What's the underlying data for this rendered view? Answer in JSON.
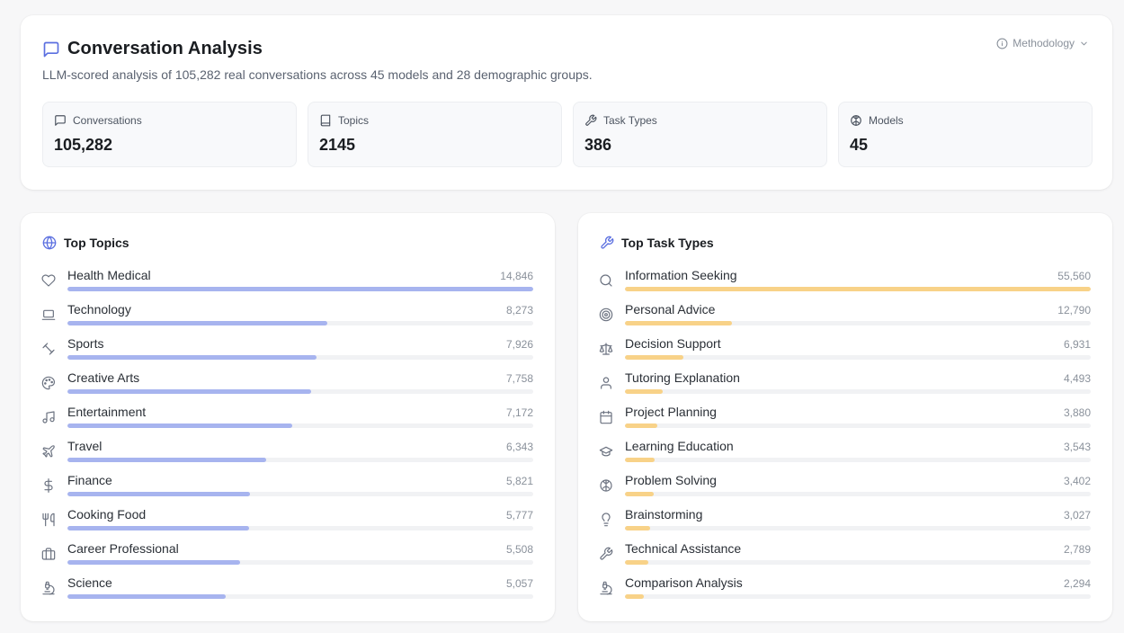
{
  "header": {
    "title": "Conversation Analysis",
    "subtitle": "LLM-scored analysis of 105,282 real conversations across 45 models and 28 demographic groups.",
    "methodology_label": "Methodology"
  },
  "stats": [
    {
      "label": "Conversations",
      "value": "105,282",
      "icon": "message-icon"
    },
    {
      "label": "Topics",
      "value": "2145",
      "icon": "book-icon"
    },
    {
      "label": "Task Types",
      "value": "386",
      "icon": "wrench-icon"
    },
    {
      "label": "Models",
      "value": "45",
      "icon": "brain-icon"
    }
  ],
  "topics": {
    "title": "Top Topics",
    "bar_color": "#a7b4ef",
    "items": [
      {
        "label": "Health Medical",
        "count": "14,846",
        "value": 14846,
        "icon": "heart-icon"
      },
      {
        "label": "Technology",
        "count": "8,273",
        "value": 8273,
        "icon": "laptop-icon"
      },
      {
        "label": "Sports",
        "count": "7,926",
        "value": 7926,
        "icon": "dumbbell-icon"
      },
      {
        "label": "Creative Arts",
        "count": "7,758",
        "value": 7758,
        "icon": "palette-icon"
      },
      {
        "label": "Entertainment",
        "count": "7,172",
        "value": 7172,
        "icon": "music-icon"
      },
      {
        "label": "Travel",
        "count": "6,343",
        "value": 6343,
        "icon": "plane-icon"
      },
      {
        "label": "Finance",
        "count": "5,821",
        "value": 5821,
        "icon": "dollar-icon"
      },
      {
        "label": "Cooking Food",
        "count": "5,777",
        "value": 5777,
        "icon": "utensils-icon"
      },
      {
        "label": "Career Professional",
        "count": "5,508",
        "value": 5508,
        "icon": "briefcase-icon"
      },
      {
        "label": "Science",
        "count": "5,057",
        "value": 5057,
        "icon": "microscope-icon"
      }
    ]
  },
  "tasks": {
    "title": "Top Task Types",
    "bar_color": "#f8d288",
    "items": [
      {
        "label": "Information Seeking",
        "count": "55,560",
        "value": 55560,
        "icon": "search-icon"
      },
      {
        "label": "Personal Advice",
        "count": "12,790",
        "value": 12790,
        "icon": "target-icon"
      },
      {
        "label": "Decision Support",
        "count": "6,931",
        "value": 6931,
        "icon": "scale-icon"
      },
      {
        "label": "Tutoring Explanation",
        "count": "4,493",
        "value": 4493,
        "icon": "user-icon"
      },
      {
        "label": "Project Planning",
        "count": "3,880",
        "value": 3880,
        "icon": "calendar-icon"
      },
      {
        "label": "Learning Education",
        "count": "3,543",
        "value": 3543,
        "icon": "graduation-cap-icon"
      },
      {
        "label": "Problem Solving",
        "count": "3,402",
        "value": 3402,
        "icon": "brain-icon"
      },
      {
        "label": "Brainstorming",
        "count": "3,027",
        "value": 3027,
        "icon": "lightbulb-icon"
      },
      {
        "label": "Technical Assistance",
        "count": "2,789",
        "value": 2789,
        "icon": "wrench-icon"
      },
      {
        "label": "Comparison Analysis",
        "count": "2,294",
        "value": 2294,
        "icon": "microscope-icon"
      }
    ]
  }
}
